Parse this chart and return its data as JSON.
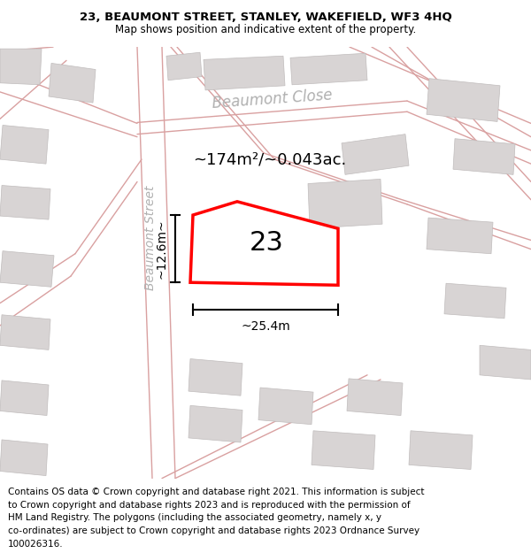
{
  "title_line1": "23, BEAUMONT STREET, STANLEY, WAKEFIELD, WF3 4HQ",
  "title_line2": "Map shows position and indicative extent of the property.",
  "area_text": "~174m²/~0.043ac.",
  "plot_number": "23",
  "dim_width": "~25.4m",
  "dim_height": "~12.6m~",
  "street_label_1": "Beaumont Close",
  "street_label_2": "Beaumont Street",
  "map_bg": "#f5efef",
  "road_color": "#d9a0a0",
  "building_fc": "#d8d4d4",
  "building_ec": "#c0bcbc",
  "highlight_color": "#ff0000",
  "title_fontsize": 9.5,
  "footer_fontsize": 7.5,
  "footer_lines": [
    "Contains OS data © Crown copyright and database right 2021. This information is subject",
    "to Crown copyright and database rights 2023 and is reproduced with the permission of",
    "HM Land Registry. The polygons (including the associated geometry, namely x, y",
    "co-ordinates) are subject to Crown copyright and database rights 2023 Ordnance Survey",
    "100026316."
  ]
}
